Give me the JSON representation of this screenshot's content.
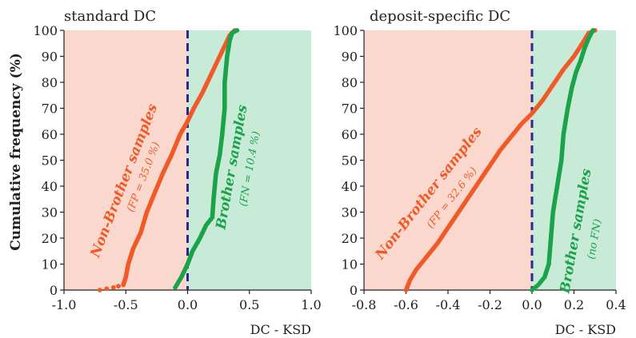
{
  "figure": {
    "ylabel": "Cumulative frequency (%)"
  },
  "colors": {
    "non_brother": "#f05a28",
    "brother": "#1aa34a",
    "divider": "#2b2a8c",
    "fp_region": "#fbd8cd",
    "fn_region": "#c8ebd8"
  },
  "chart_data": [
    {
      "type": "scatter",
      "title": "standard DC",
      "xlabel": "DC - KSD",
      "ylabel": "Cumulative frequency (%)",
      "xlim": [
        -1.0,
        1.0
      ],
      "ylim": [
        0,
        100
      ],
      "xticks": [
        "-1.0",
        "-0.5",
        "0.0",
        "0.5",
        "1.0"
      ],
      "yticks": [
        "0",
        "10",
        "20",
        "30",
        "40",
        "50",
        "60",
        "70",
        "80",
        "90",
        "100"
      ],
      "divider_x": 0.0,
      "series": [
        {
          "name": "Non-Brother samples",
          "annotation": "(FP = 35.0 %)",
          "color": "#f05a28",
          "points": [
            [
              -0.71,
              0
            ],
            [
              -0.6,
              1
            ],
            [
              -0.52,
              2
            ],
            [
              -0.5,
              5
            ],
            [
              -0.48,
              10
            ],
            [
              -0.44,
              16
            ],
            [
              -0.38,
              22
            ],
            [
              -0.33,
              30
            ],
            [
              -0.27,
              37
            ],
            [
              -0.2,
              45
            ],
            [
              -0.13,
              52
            ],
            [
              -0.06,
              60
            ],
            [
              0.0,
              65
            ],
            [
              0.05,
              70
            ],
            [
              0.12,
              76
            ],
            [
              0.18,
              82
            ],
            [
              0.24,
              88
            ],
            [
              0.3,
              94
            ],
            [
              0.34,
              98
            ],
            [
              0.38,
              100
            ]
          ]
        },
        {
          "name": "Brother samples",
          "annotation": "(FN = 10.4 %)",
          "color": "#1aa34a",
          "points": [
            [
              -0.1,
              1
            ],
            [
              -0.05,
              5
            ],
            [
              0.0,
              10
            ],
            [
              0.04,
              15
            ],
            [
              0.1,
              20
            ],
            [
              0.15,
              25
            ],
            [
              0.2,
              28
            ],
            [
              0.21,
              35
            ],
            [
              0.23,
              45
            ],
            [
              0.26,
              52
            ],
            [
              0.28,
              60
            ],
            [
              0.3,
              70
            ],
            [
              0.3,
              80
            ],
            [
              0.31,
              85
            ],
            [
              0.32,
              90
            ],
            [
              0.34,
              96
            ],
            [
              0.36,
              99
            ],
            [
              0.4,
              100
            ]
          ]
        }
      ]
    },
    {
      "type": "scatter",
      "title": "deposit-specific DC",
      "xlabel": "DC - KSD",
      "ylabel": "",
      "xlim": [
        -0.8,
        0.4
      ],
      "ylim": [
        0,
        100
      ],
      "xticks": [
        "-0.8",
        "-0.6",
        "-0.4",
        "-0.2",
        "0.0",
        "0.2",
        "0.4"
      ],
      "yticks": [
        "0",
        "10",
        "20",
        "30",
        "40",
        "50",
        "60",
        "70",
        "80",
        "90",
        "100"
      ],
      "divider_x": 0.0,
      "series": [
        {
          "name": "Non-Brother samples",
          "annotation": "(FP = 32.6 %)",
          "color": "#f05a28",
          "points": [
            [
              -0.6,
              0
            ],
            [
              -0.58,
              4
            ],
            [
              -0.55,
              8
            ],
            [
              -0.5,
              13
            ],
            [
              -0.45,
              18
            ],
            [
              -0.4,
              24
            ],
            [
              -0.35,
              30
            ],
            [
              -0.3,
              36
            ],
            [
              -0.25,
              42
            ],
            [
              -0.2,
              48
            ],
            [
              -0.15,
              54
            ],
            [
              -0.1,
              59
            ],
            [
              -0.05,
              64
            ],
            [
              0.0,
              68
            ],
            [
              0.05,
              73
            ],
            [
              0.1,
              79
            ],
            [
              0.15,
              85
            ],
            [
              0.2,
              90
            ],
            [
              0.24,
              95
            ],
            [
              0.27,
              99
            ],
            [
              0.3,
              100
            ]
          ]
        },
        {
          "name": "Brother samples",
          "annotation": "(no FN)",
          "color": "#1aa34a",
          "points": [
            [
              0.0,
              0
            ],
            [
              0.03,
              2
            ],
            [
              0.06,
              5
            ],
            [
              0.08,
              10
            ],
            [
              0.09,
              20
            ],
            [
              0.1,
              30
            ],
            [
              0.12,
              40
            ],
            [
              0.14,
              50
            ],
            [
              0.15,
              60
            ],
            [
              0.17,
              70
            ],
            [
              0.19,
              78
            ],
            [
              0.21,
              84
            ],
            [
              0.23,
              88
            ],
            [
              0.25,
              93
            ],
            [
              0.27,
              97
            ],
            [
              0.29,
              100
            ]
          ]
        }
      ]
    }
  ]
}
